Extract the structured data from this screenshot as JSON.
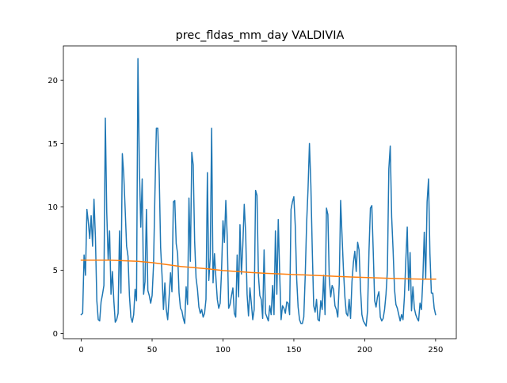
{
  "chart_data": {
    "type": "line",
    "title": "prec_fldas_mm_day VALDIVIA",
    "xlabel": "",
    "ylabel": "",
    "xlim": [
      -12.6,
      264.6
    ],
    "ylim": [
      -0.4,
      22.7
    ],
    "x_ticks": [
      0,
      50,
      100,
      150,
      200,
      250
    ],
    "y_ticks": [
      0,
      5,
      10,
      15,
      20
    ],
    "grid": false,
    "legend": "none",
    "series": [
      {
        "color": "#1f77b4",
        "values": [
          1.5,
          1.6,
          6.2,
          4.6,
          9.8,
          8.8,
          7.5,
          9.3,
          6.9,
          10.6,
          7.6,
          2.6,
          1.1,
          1.0,
          2.5,
          3.1,
          3.8,
          17.0,
          9.6,
          5.8,
          8.1,
          3.1,
          4.9,
          2.6,
          0.9,
          1.1,
          1.6,
          8.1,
          3.2,
          14.2,
          12.5,
          9.8,
          6.9,
          6.1,
          3.0,
          1.3,
          0.9,
          1.5,
          3.5,
          2.6,
          21.7,
          13.2,
          8.4,
          12.2,
          3.1,
          4.1,
          9.8,
          3.4,
          3.0,
          2.4,
          3.0,
          5.4,
          11.1,
          16.2,
          16.2,
          12.6,
          6.8,
          4.6,
          1.9,
          4.0,
          1.9,
          1.1,
          2.9,
          4.8,
          3.3,
          10.4,
          10.5,
          7.1,
          6.3,
          3.2,
          2.0,
          1.8,
          1.2,
          0.8,
          3.7,
          2.3,
          10.7,
          5.7,
          14.3,
          13.3,
          7.3,
          4.4,
          3.5,
          2.1,
          1.6,
          1.9,
          1.3,
          1.6,
          2.7,
          12.7,
          4.2,
          6.0,
          16.2,
          4.0,
          6.3,
          4.4,
          2.7,
          2.0,
          2.4,
          5.0,
          8.9,
          7.2,
          10.5,
          7.6,
          2.0,
          2.3,
          3.0,
          3.6,
          1.6,
          1.3,
          6.2,
          2.9,
          8.6,
          4.7,
          7.0,
          10.2,
          7.9,
          3.1,
          1.4,
          3.6,
          2.4,
          1.1,
          1.9,
          11.3,
          10.9,
          4.6,
          3.0,
          2.7,
          1.2,
          6.6,
          1.6,
          1.3,
          1.0,
          2.2,
          1.5,
          3.8,
          1.5,
          8.1,
          3.1,
          9.0,
          4.7,
          1.1,
          2.2,
          2.0,
          1.6,
          2.5,
          2.4,
          1.5,
          9.8,
          10.4,
          10.8,
          8.5,
          4.3,
          2.1,
          1.1,
          0.8,
          0.8,
          1.3,
          4.5,
          8.7,
          11.4,
          15.0,
          11.7,
          6.6,
          2.2,
          1.7,
          2.7,
          1.1,
          1.0,
          2.6,
          1.9,
          4.6,
          1.5,
          9.9,
          9.4,
          4.3,
          2.9,
          3.8,
          3.5,
          2.2,
          1.9,
          1.3,
          3.9,
          10.5,
          7.7,
          5.0,
          2.9,
          1.6,
          1.4,
          2.7,
          1.2,
          4.1,
          5.6,
          6.5,
          4.9,
          7.2,
          6.6,
          3.6,
          1.5,
          1.0,
          0.8,
          0.6,
          1.8,
          6.5,
          9.9,
          10.1,
          6.5,
          2.6,
          2.1,
          2.9,
          3.3,
          1.3,
          1.0,
          1.2,
          1.9,
          3.1,
          5.0,
          13.0,
          14.8,
          9.2,
          6.6,
          3.5,
          2.3,
          2.0,
          1.5,
          1.0,
          1.5,
          1.1,
          2.9,
          5.8,
          8.4,
          3.4,
          6.4,
          1.8,
          3.7,
          2.0,
          1.5,
          1.2,
          1.0,
          2.4,
          1.9,
          4.3,
          8.0,
          4.3,
          10.4,
          12.2,
          6.3,
          3.2,
          3.2,
          2.0,
          1.5
        ]
      },
      {
        "color": "#ff7f0e",
        "x": [
          0,
          10,
          20,
          30,
          40,
          50,
          60,
          70,
          80,
          90,
          100,
          110,
          120,
          130,
          140,
          150,
          160,
          170,
          180,
          190,
          200,
          210,
          220,
          230,
          240,
          250
        ],
        "values": [
          5.8,
          5.8,
          5.8,
          5.75,
          5.7,
          5.6,
          5.45,
          5.3,
          5.2,
          5.1,
          4.98,
          4.9,
          4.82,
          4.76,
          4.71,
          4.66,
          4.62,
          4.57,
          4.52,
          4.47,
          4.43,
          4.39,
          4.35,
          4.32,
          4.3,
          4.3
        ]
      }
    ]
  }
}
